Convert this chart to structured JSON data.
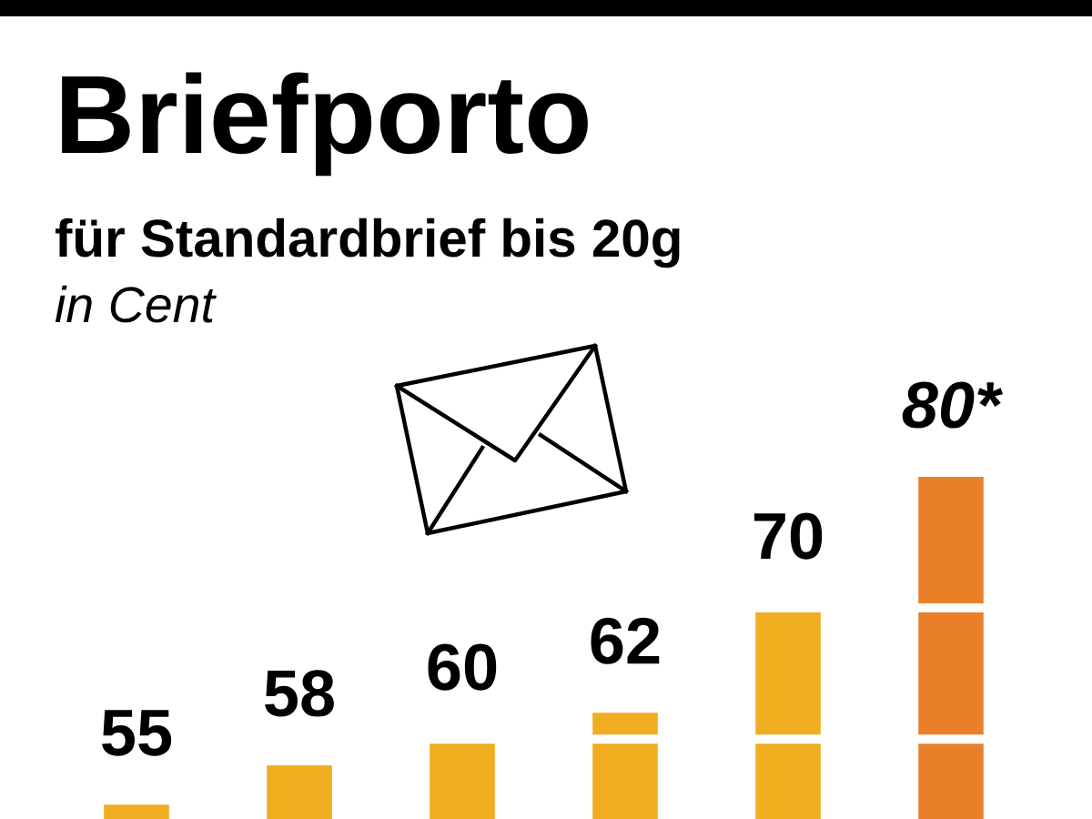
{
  "chart_data": {
    "type": "bar",
    "title": "Briefporto",
    "subtitle": "für Standardbrief bis 20g",
    "ylabel": "in Cent",
    "categories": [
      null,
      null,
      null,
      null,
      null,
      null
    ],
    "values": [
      55,
      58,
      60,
      62,
      70,
      80
    ],
    "colors": [
      "#f0ad1f",
      "#f0ad1f",
      "#f0ad1f",
      "#f0ad1f",
      "#f0ad1f",
      "#ea7f2a"
    ],
    "value_labels": [
      "55",
      "58",
      "60",
      "62",
      "70",
      "80*"
    ],
    "ref_lines": [
      {
        "axis": "y",
        "value": 60,
        "color": "#ffffff"
      },
      {
        "axis": "y",
        "value": 70,
        "color": "#ffffff"
      }
    ]
  }
}
